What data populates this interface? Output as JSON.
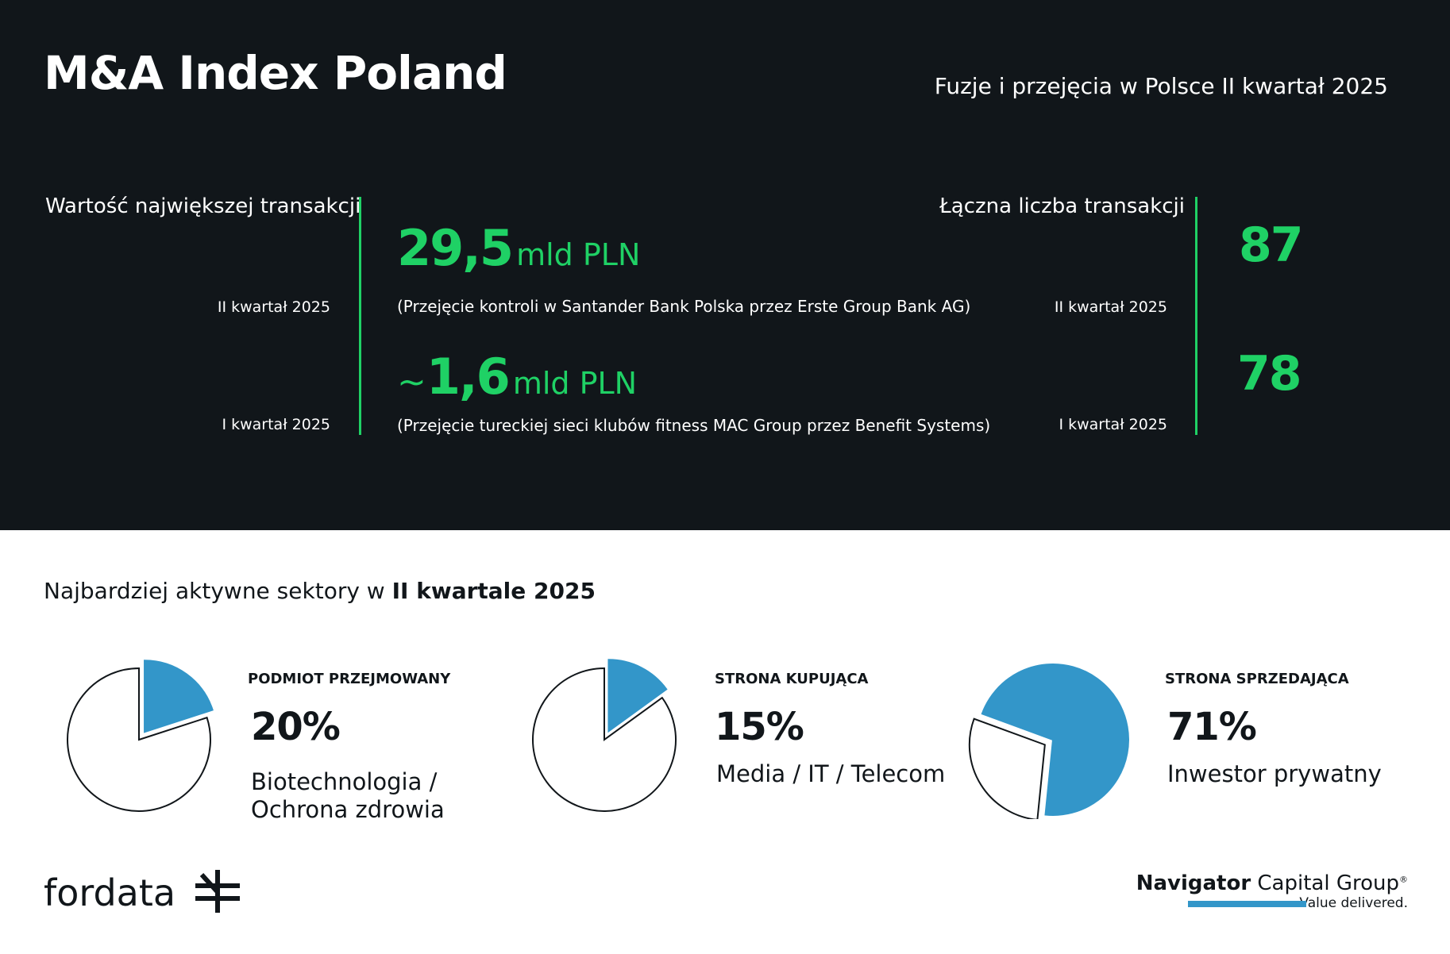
{
  "header": {
    "title": "M&A Index Poland",
    "subtitle": "Fuzje i przejęcia w Polsce II kwartał 2025"
  },
  "largest_deal": {
    "label": "Wartość największej transakcji",
    "rows": [
      {
        "quarter": "II kwartał 2025",
        "value": "29,5",
        "prefix": "",
        "unit": "mld PLN",
        "description": "(Przejęcie kontroli w Santander Bank Polska przez Erste Group Bank AG)"
      },
      {
        "quarter": "I kwartał 2025",
        "value": "1,6",
        "prefix": "~",
        "unit": "mld PLN",
        "description": "(Przejęcie tureckiej sieci klubów fitness MAC Group przez Benefit Systems)"
      }
    ]
  },
  "total_deals": {
    "label": "Łączna liczba transakcji",
    "rows": [
      {
        "quarter": "II kwartał 2025",
        "value": "87"
      },
      {
        "quarter": "I kwartał 2025",
        "value": "78"
      }
    ]
  },
  "sectors": {
    "title_prefix": "Najbardziej aktywne sektory w",
    "title_bold": "II kwartale 2025",
    "items": [
      {
        "category": "PODMIOT PRZEJMOWANY",
        "percent_label": "20%",
        "sector_line1": "Biotechnologia /",
        "sector_line2": "Ochrona zdrowia"
      },
      {
        "category": "STRONA KUPUJĄCA",
        "percent_label": "15%",
        "sector_line1": "Media / IT / Telecom",
        "sector_line2": ""
      },
      {
        "category": "STRONA SPRZEDAJĄCA",
        "percent_label": "71%",
        "sector_line1": "Inwestor prywatny",
        "sector_line2": ""
      }
    ]
  },
  "chart_data": [
    {
      "type": "pie",
      "title": "",
      "categories": [
        "Biotechnologia / Ochrona zdrowia",
        ""
      ],
      "values": [
        20,
        80
      ],
      "colors": [
        "#3396c9",
        "#ffffff"
      ]
    },
    {
      "type": "pie",
      "title": "",
      "categories": [
        "Media / IT / Telecom",
        ""
      ],
      "values": [
        15,
        85
      ],
      "colors": [
        "#3396c9",
        "#ffffff"
      ]
    },
    {
      "type": "pie",
      "title": "",
      "categories": [
        "Inwestor prywatny",
        ""
      ],
      "values": [
        71,
        29
      ],
      "colors": [
        "#3396c9",
        "#ffffff"
      ]
    }
  ],
  "logos": {
    "fordata": "fordata",
    "navigator_bold": "Navigator",
    "navigator_rest": "Capital Group",
    "navigator_reg": "®",
    "navigator_tagline": "Value delivered."
  },
  "colors": {
    "background_dark": "#11161a",
    "accent_green": "#1fd165",
    "pie_blue": "#3396c9"
  }
}
